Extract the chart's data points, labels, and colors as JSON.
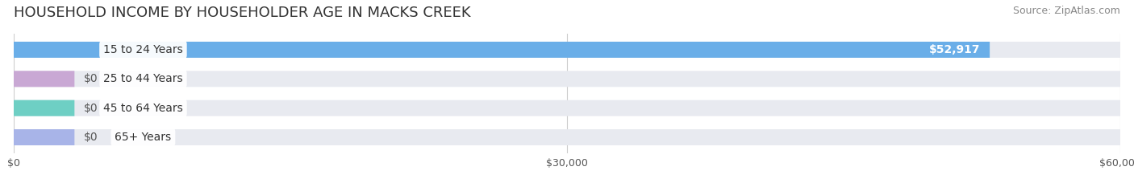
{
  "title": "HOUSEHOLD INCOME BY HOUSEHOLDER AGE IN MACKS CREEK",
  "source": "Source: ZipAtlas.com",
  "categories": [
    "15 to 24 Years",
    "25 to 44 Years",
    "45 to 64 Years",
    "65+ Years"
  ],
  "values": [
    52917,
    0,
    0,
    0
  ],
  "bar_colors": [
    "#6aaee8",
    "#c9a8d4",
    "#6ecfc4",
    "#a8b4e8"
  ],
  "bar_bg_color": "#e8eaf0",
  "xlim": [
    0,
    60000
  ],
  "xticks": [
    0,
    30000,
    60000
  ],
  "xtick_labels": [
    "$0",
    "$30,000",
    "$60,000"
  ],
  "value_labels": [
    "$52,917",
    "$0",
    "$0",
    "$0"
  ],
  "title_fontsize": 13,
  "source_fontsize": 9,
  "label_fontsize": 10,
  "value_fontsize": 10,
  "tick_fontsize": 9,
  "background_color": "#ffffff",
  "bar_height": 0.55,
  "label_bg_color": "#ffffff"
}
